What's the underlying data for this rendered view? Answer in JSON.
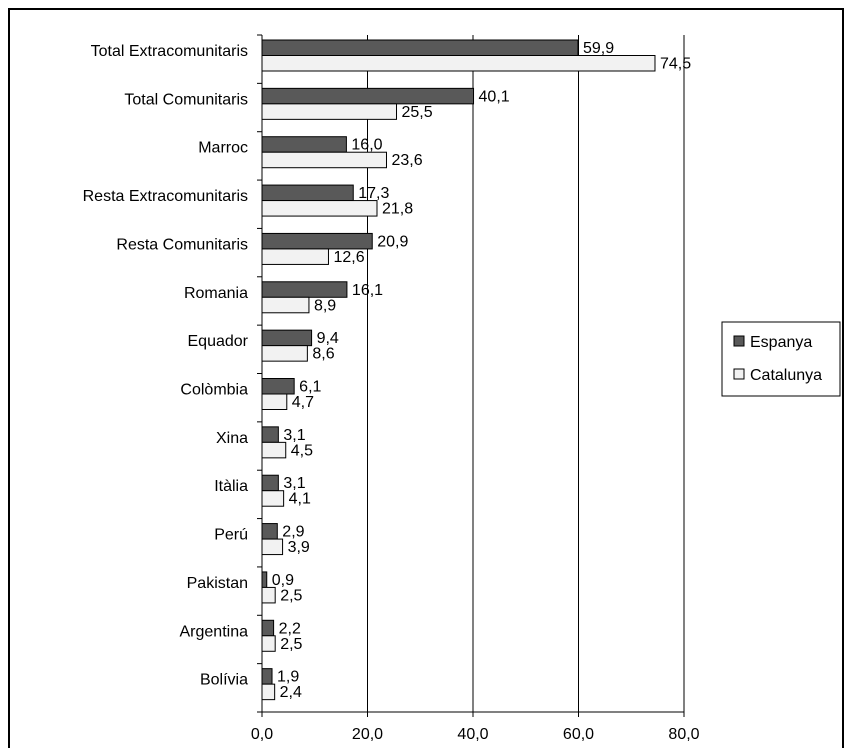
{
  "chart_data": {
    "type": "bar",
    "orientation": "horizontal",
    "categories": [
      "Total Extracomunitaris",
      "Total Comunitaris",
      "Marroc",
      "Resta Extracomunitaris",
      "Resta Comunitaris",
      "Romania",
      "Equador",
      "Colòmbia",
      "Xina",
      "Itàlia",
      "Perú",
      "Pakistan",
      "Argentina",
      "Bolívia"
    ],
    "series": [
      {
        "name": "Espanya",
        "color": "#595959",
        "values": [
          59.9,
          40.1,
          16.0,
          17.3,
          20.9,
          16.1,
          9.4,
          6.1,
          3.1,
          3.1,
          2.9,
          0.9,
          2.2,
          1.9
        ],
        "labels": [
          "59,9",
          "40,1",
          "16,0",
          "17,3",
          "20,9",
          "16,1",
          "9,4",
          "6,1",
          "3,1",
          "3,1",
          "2,9",
          "0,9",
          "2,2",
          "1,9"
        ]
      },
      {
        "name": "Catalunya",
        "color": "#f2f2f2",
        "values": [
          74.5,
          25.5,
          23.6,
          21.8,
          12.6,
          8.9,
          8.6,
          4.7,
          4.5,
          4.1,
          3.9,
          2.5,
          2.5,
          2.4
        ],
        "labels": [
          "74,5",
          "25,5",
          "23,6",
          "21,8",
          "12,6",
          "8,9",
          "8,6",
          "4,7",
          "4,5",
          "4,1",
          "3,9",
          "2,5",
          "2,5",
          "2,4"
        ]
      }
    ],
    "xlim": [
      0,
      80
    ],
    "xticks": [
      0,
      20,
      40,
      60,
      80
    ],
    "xtick_labels": [
      "0,0",
      "20,0",
      "40,0",
      "60,0",
      "80,0"
    ],
    "grid": true,
    "legend": "right"
  }
}
